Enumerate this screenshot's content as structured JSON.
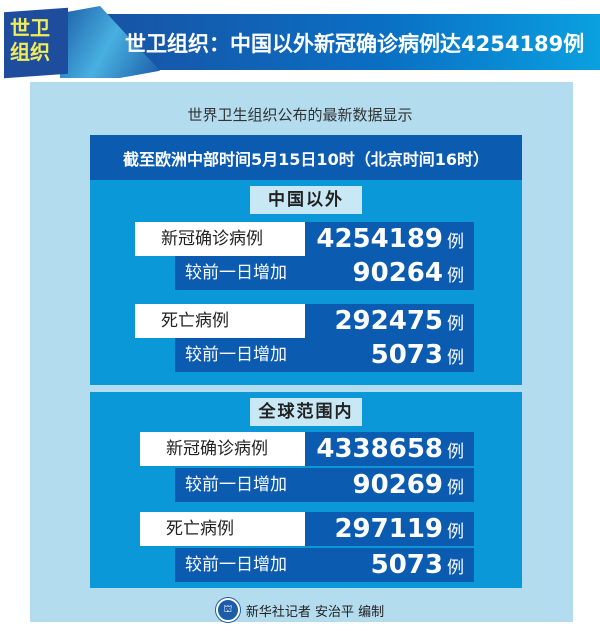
{
  "header": {
    "badge": "世卫组织",
    "title": "世卫组织：中国以外新冠确诊病例达4254189例"
  },
  "subtitle": "世界卫生组织公布的最新数据显示",
  "date_banner": "截至欧洲中部时间5月15日10时（北京时间16时）",
  "sections": [
    {
      "title": "中国以外",
      "confirmed": {
        "label": "新冠确诊病例",
        "value": "4254189",
        "unit": "例"
      },
      "confirmed_increase": {
        "label": "较前一日增加",
        "value": "90264",
        "unit": "例"
      },
      "deaths": {
        "label": "死亡病例",
        "value": "292475",
        "unit": "例"
      },
      "deaths_increase": {
        "label": "较前一日增加",
        "value": "5073",
        "unit": "例"
      }
    },
    {
      "title": "全球范围内",
      "confirmed": {
        "label": "新冠确诊病例",
        "value": "4338658",
        "unit": "例"
      },
      "confirmed_increase": {
        "label": "较前一日增加",
        "value": "90269",
        "unit": "例"
      },
      "deaths": {
        "label": "死亡病例",
        "value": "297119",
        "unit": "例"
      },
      "deaths_increase": {
        "label": "较前一日增加",
        "value": "5073",
        "unit": "例"
      }
    }
  ],
  "footer": {
    "credit": "新华社记者 安治平 编制",
    "logo_icon": "xinhua-emblem-icon"
  },
  "colors": {
    "dark_blue": "#0b5bb0",
    "section_blue": "#0a98d8",
    "panel": "#b3dcef",
    "badge_text": "#f2ec5a"
  }
}
